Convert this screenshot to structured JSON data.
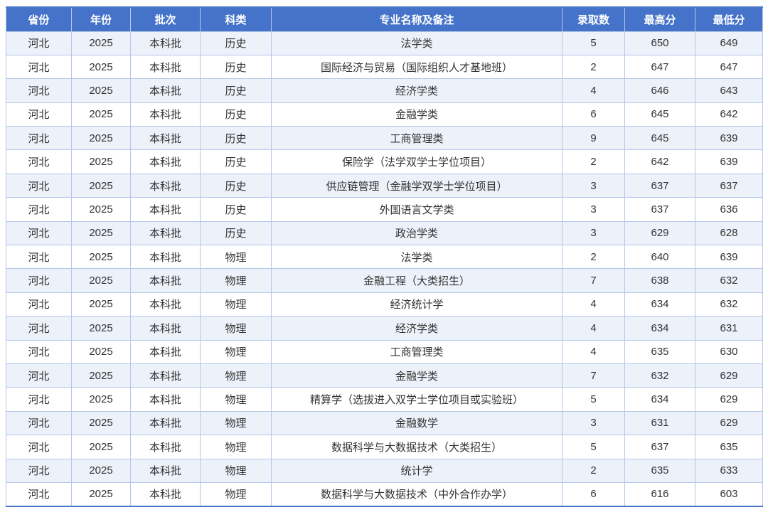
{
  "chart_data": {
    "type": "table",
    "title": "",
    "columns": [
      "省份",
      "年份",
      "批次",
      "科类",
      "专业名称及备注",
      "录取数",
      "最高分",
      "最低分"
    ],
    "rows": [
      [
        "河北",
        "2025",
        "本科批",
        "历史",
        "法学类",
        "5",
        "650",
        "649"
      ],
      [
        "河北",
        "2025",
        "本科批",
        "历史",
        "国际经济与贸易（国际组织人才基地班）",
        "2",
        "647",
        "647"
      ],
      [
        "河北",
        "2025",
        "本科批",
        "历史",
        "经济学类",
        "4",
        "646",
        "643"
      ],
      [
        "河北",
        "2025",
        "本科批",
        "历史",
        "金融学类",
        "6",
        "645",
        "642"
      ],
      [
        "河北",
        "2025",
        "本科批",
        "历史",
        "工商管理类",
        "9",
        "645",
        "639"
      ],
      [
        "河北",
        "2025",
        "本科批",
        "历史",
        "保险学（法学双学士学位项目）",
        "2",
        "642",
        "639"
      ],
      [
        "河北",
        "2025",
        "本科批",
        "历史",
        "供应链管理（金融学双学士学位项目）",
        "3",
        "637",
        "637"
      ],
      [
        "河北",
        "2025",
        "本科批",
        "历史",
        "外国语言文学类",
        "3",
        "637",
        "636"
      ],
      [
        "河北",
        "2025",
        "本科批",
        "历史",
        "政治学类",
        "3",
        "629",
        "628"
      ],
      [
        "河北",
        "2025",
        "本科批",
        "物理",
        "法学类",
        "2",
        "640",
        "639"
      ],
      [
        "河北",
        "2025",
        "本科批",
        "物理",
        "金融工程（大类招生）",
        "7",
        "638",
        "632"
      ],
      [
        "河北",
        "2025",
        "本科批",
        "物理",
        "经济统计学",
        "4",
        "634",
        "632"
      ],
      [
        "河北",
        "2025",
        "本科批",
        "物理",
        "经济学类",
        "4",
        "634",
        "631"
      ],
      [
        "河北",
        "2025",
        "本科批",
        "物理",
        "工商管理类",
        "4",
        "635",
        "630"
      ],
      [
        "河北",
        "2025",
        "本科批",
        "物理",
        "金融学类",
        "7",
        "632",
        "629"
      ],
      [
        "河北",
        "2025",
        "本科批",
        "物理",
        "精算学（选拔进入双学士学位项目或实验班）",
        "5",
        "634",
        "629"
      ],
      [
        "河北",
        "2025",
        "本科批",
        "物理",
        "金融数学",
        "3",
        "631",
        "629"
      ],
      [
        "河北",
        "2025",
        "本科批",
        "物理",
        "数据科学与大数据技术（大类招生）",
        "5",
        "637",
        "635"
      ],
      [
        "河北",
        "2025",
        "本科批",
        "物理",
        "统计学",
        "2",
        "635",
        "633"
      ],
      [
        "河北",
        "2025",
        "本科批",
        "物理",
        "数据科学与大数据技术（中外合作办学）",
        "6",
        "616",
        "603"
      ]
    ]
  },
  "colors": {
    "header_bg": "#4573c9",
    "header_text": "#ffffff",
    "row_stripe": "#edf1f9",
    "row_plain": "#ffffff",
    "border_inner": "#b4c7e7",
    "border_outer": "#4a77cc",
    "cell_text": "#333333"
  }
}
